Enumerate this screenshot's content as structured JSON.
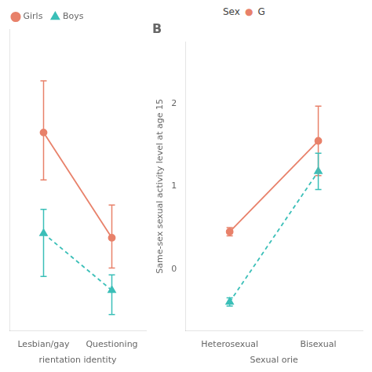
{
  "chart_data": [
    {
      "type": "line",
      "categories": [
        "Lesbian/gay",
        "Questioning"
      ],
      "x_label": "rientation identity",
      "series": [
        {
          "name": "Girls",
          "color": "#E8816A",
          "marker": "circle",
          "line_style": "solid",
          "values": [
            1.55,
            0.33
          ],
          "yerr_upper": [
            0.6,
            0.38
          ],
          "yerr_lower": [
            0.55,
            0.35
          ]
        },
        {
          "name": "Boys",
          "color": "#3BBFB8",
          "marker": "triangle",
          "line_style": "dashed",
          "values": [
            0.38,
            -0.28
          ],
          "yerr_upper": [
            0.28,
            0.18
          ],
          "yerr_lower": [
            0.5,
            0.28
          ]
        }
      ],
      "ylim": [
        -0.75,
        2.75
      ],
      "yticks": [],
      "tick_labels": "x",
      "grid": false,
      "legend": "top left"
    },
    {
      "type": "line",
      "title": "B",
      "categories": [
        "Heterosexual",
        "Bisexual"
      ],
      "x_label": "Sexual orie",
      "y_label": "Same-sex sexual activity level at age 15",
      "series": [
        {
          "name": "Girls",
          "color": "#E8816A",
          "marker": "circle",
          "line_style": "solid",
          "values": [
            0.45,
            1.55
          ],
          "yerr_upper": [
            0.05,
            0.42
          ],
          "yerr_lower": [
            0.05,
            0.42
          ]
        },
        {
          "name": "Boys",
          "color": "#3BBFB8",
          "marker": "triangle",
          "line_style": "dashed",
          "values": [
            -0.4,
            1.18
          ],
          "yerr_upper": [
            0.05,
            0.22
          ],
          "yerr_lower": [
            0.05,
            0.22
          ]
        }
      ],
      "ylim": [
        -0.75,
        2.75
      ],
      "yticks": [
        0,
        1,
        2
      ],
      "grid": false,
      "legend": false,
      "annotations": [
        {
          "text": "Sex"
        },
        {
          "text": "●",
          "color": "#E8816A"
        },
        {
          "text": "G"
        }
      ]
    }
  ]
}
